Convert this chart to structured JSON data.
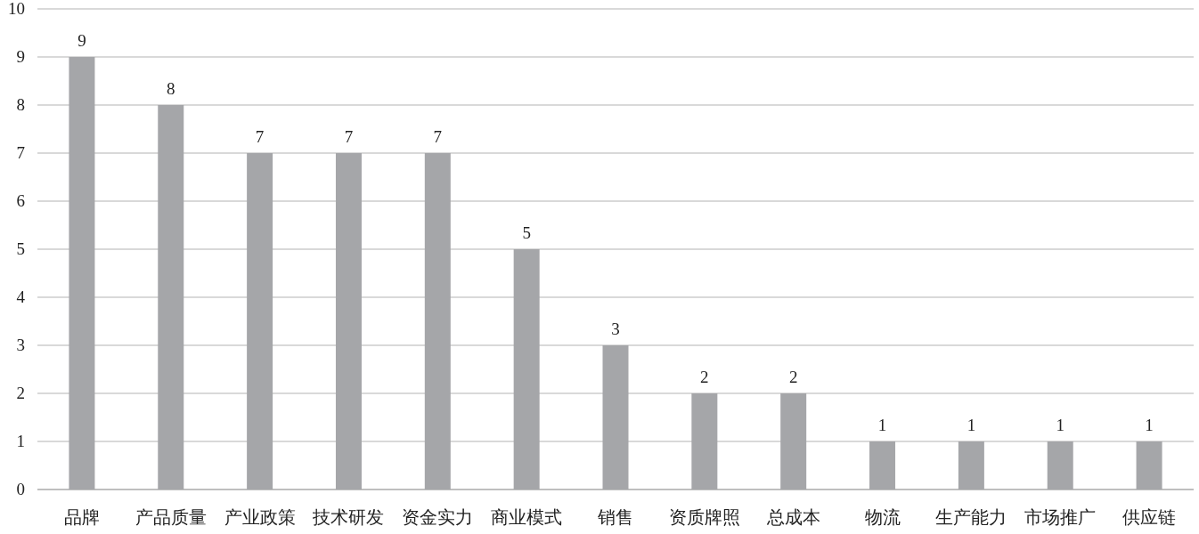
{
  "chart_data": {
    "type": "bar",
    "categories": [
      "品牌",
      "产品质量",
      "产业政策",
      "技术研发",
      "资金实力",
      "商业模式",
      "销售",
      "资质牌照",
      "总成本",
      "物流",
      "生产能力",
      "市场推广",
      "供应链"
    ],
    "values": [
      9,
      8,
      7,
      7,
      7,
      5,
      3,
      2,
      2,
      1,
      1,
      1,
      1
    ],
    "color": "#a5a6a9",
    "ylim": [
      0,
      10
    ],
    "yticks": [
      0,
      1,
      2,
      3,
      4,
      5,
      6,
      7,
      8,
      9,
      10
    ],
    "grid": "y",
    "data_labels": true
  }
}
